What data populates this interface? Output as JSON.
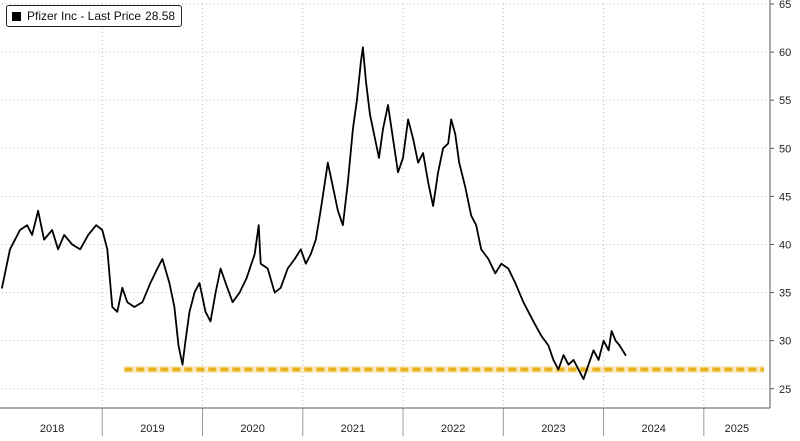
{
  "chart_data": {
    "type": "line",
    "title": "",
    "xlabel": "",
    "ylabel": "",
    "ylim": [
      23,
      65
    ],
    "xlim": [
      2018.0,
      2025.66
    ],
    "y_ticks": [
      25,
      30,
      35,
      40,
      45,
      50,
      55,
      60,
      65
    ],
    "x_tick_labels": [
      "2018",
      "2019",
      "2020",
      "2021",
      "2022",
      "2023",
      "2024",
      "2025"
    ],
    "grid": true,
    "legend_position": "top-left",
    "legend": {
      "label": "Pfizer Inc - Last Price",
      "value": "28.58"
    },
    "colors": {
      "price_line": "#000000",
      "support_line": "#e8b21a",
      "grid": "#bbbbbb"
    },
    "series": [
      {
        "name": "Pfizer Inc - Last Price",
        "points": [
          [
            2018.0,
            35.5
          ],
          [
            2018.04,
            37.5
          ],
          [
            2018.08,
            39.5
          ],
          [
            2018.13,
            40.5
          ],
          [
            2018.18,
            41.5
          ],
          [
            2018.25,
            42.0
          ],
          [
            2018.3,
            41.0
          ],
          [
            2018.36,
            43.5
          ],
          [
            2018.42,
            40.5
          ],
          [
            2018.5,
            41.5
          ],
          [
            2018.56,
            39.5
          ],
          [
            2018.62,
            41.0
          ],
          [
            2018.7,
            40.0
          ],
          [
            2018.78,
            39.5
          ],
          [
            2018.86,
            41.0
          ],
          [
            2018.94,
            42.0
          ],
          [
            2019.0,
            41.5
          ],
          [
            2019.05,
            39.5
          ],
          [
            2019.1,
            33.5
          ],
          [
            2019.15,
            33.0
          ],
          [
            2019.2,
            35.5
          ],
          [
            2019.25,
            34.0
          ],
          [
            2019.32,
            33.5
          ],
          [
            2019.4,
            34.0
          ],
          [
            2019.48,
            36.0
          ],
          [
            2019.55,
            37.5
          ],
          [
            2019.6,
            38.5
          ],
          [
            2019.67,
            36.0
          ],
          [
            2019.72,
            33.5
          ],
          [
            2019.76,
            29.5
          ],
          [
            2019.8,
            27.5
          ],
          [
            2019.83,
            30.0
          ],
          [
            2019.87,
            33.0
          ],
          [
            2019.92,
            35.0
          ],
          [
            2019.97,
            36.0
          ],
          [
            2020.03,
            33.0
          ],
          [
            2020.08,
            32.0
          ],
          [
            2020.13,
            35.0
          ],
          [
            2020.18,
            37.5
          ],
          [
            2020.23,
            36.0
          ],
          [
            2020.3,
            34.0
          ],
          [
            2020.37,
            35.0
          ],
          [
            2020.44,
            36.5
          ],
          [
            2020.52,
            39.0
          ],
          [
            2020.56,
            42.0
          ],
          [
            2020.58,
            38.0
          ],
          [
            2020.65,
            37.5
          ],
          [
            2020.72,
            35.0
          ],
          [
            2020.78,
            35.5
          ],
          [
            2020.85,
            37.5
          ],
          [
            2020.92,
            38.5
          ],
          [
            2020.98,
            39.5
          ],
          [
            2021.03,
            38.0
          ],
          [
            2021.08,
            39.0
          ],
          [
            2021.13,
            40.5
          ],
          [
            2021.17,
            43.0
          ],
          [
            2021.2,
            45.0
          ],
          [
            2021.25,
            48.5
          ],
          [
            2021.3,
            46.0
          ],
          [
            2021.35,
            43.5
          ],
          [
            2021.4,
            42.0
          ],
          [
            2021.45,
            46.5
          ],
          [
            2021.5,
            52.0
          ],
          [
            2021.54,
            55.0
          ],
          [
            2021.58,
            59.0
          ],
          [
            2021.6,
            60.5
          ],
          [
            2021.63,
            57.0
          ],
          [
            2021.67,
            53.5
          ],
          [
            2021.72,
            51.0
          ],
          [
            2021.76,
            49.0
          ],
          [
            2021.8,
            52.0
          ],
          [
            2021.85,
            54.5
          ],
          [
            2021.9,
            51.0
          ],
          [
            2021.95,
            47.5
          ],
          [
            2022.0,
            49.0
          ],
          [
            2022.05,
            53.0
          ],
          [
            2022.1,
            51.0
          ],
          [
            2022.15,
            48.5
          ],
          [
            2022.2,
            49.5
          ],
          [
            2022.25,
            46.5
          ],
          [
            2022.3,
            44.0
          ],
          [
            2022.35,
            47.5
          ],
          [
            2022.4,
            50.0
          ],
          [
            2022.45,
            50.5
          ],
          [
            2022.48,
            53.0
          ],
          [
            2022.52,
            51.5
          ],
          [
            2022.56,
            48.5
          ],
          [
            2022.62,
            46.0
          ],
          [
            2022.68,
            43.0
          ],
          [
            2022.73,
            42.0
          ],
          [
            2022.78,
            39.5
          ],
          [
            2022.85,
            38.5
          ],
          [
            2022.92,
            37.0
          ],
          [
            2022.98,
            38.0
          ],
          [
            2023.05,
            37.5
          ],
          [
            2023.12,
            36.0
          ],
          [
            2023.2,
            34.0
          ],
          [
            2023.3,
            32.0
          ],
          [
            2023.38,
            30.5
          ],
          [
            2023.45,
            29.5
          ],
          [
            2023.5,
            28.0
          ],
          [
            2023.55,
            27.0
          ],
          [
            2023.6,
            28.5
          ],
          [
            2023.65,
            27.5
          ],
          [
            2023.7,
            28.0
          ],
          [
            2023.75,
            27.0
          ],
          [
            2023.8,
            26.0
          ],
          [
            2023.85,
            27.5
          ],
          [
            2023.9,
            29.0
          ],
          [
            2023.95,
            28.0
          ],
          [
            2024.0,
            30.0
          ],
          [
            2024.05,
            29.0
          ],
          [
            2024.08,
            31.0
          ],
          [
            2024.12,
            30.0
          ],
          [
            2024.16,
            29.5
          ],
          [
            2024.22,
            28.5
          ]
        ]
      }
    ],
    "reference_lines": [
      {
        "y": 27.0,
        "x_start": 2019.22,
        "x_end": 2025.6,
        "style": "dashed",
        "color": "#e8b21a"
      }
    ]
  }
}
